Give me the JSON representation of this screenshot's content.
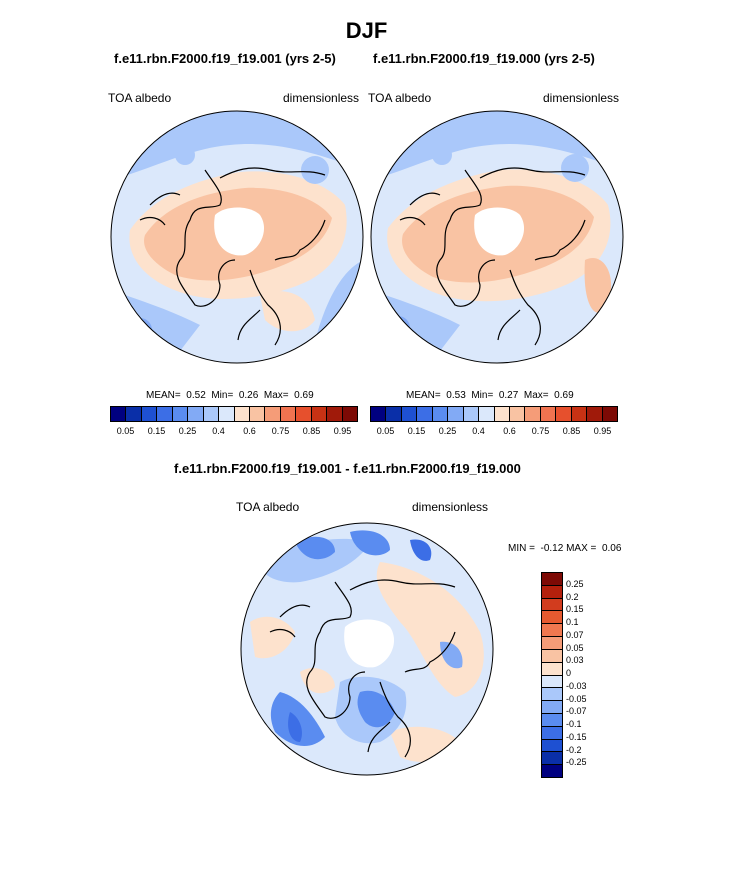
{
  "season_title": "DJF",
  "panels": [
    {
      "case_label": "f.e11.rbn.F2000.f19_f19.001 (yrs 2-5)",
      "variable": "TOA albedo",
      "units": "dimensionless",
      "stats": {
        "mean_label": "MEAN=",
        "mean": "0.52",
        "min_label": "Min=",
        "min": "0.26",
        "max_label": "Max=",
        "max": "0.69"
      }
    },
    {
      "case_label": "f.e11.rbn.F2000.f19_f19.000 (yrs 2-5)",
      "variable": "TOA albedo",
      "units": "dimensionless",
      "stats": {
        "mean_label": "MEAN=",
        "mean": "0.53",
        "min_label": "Min=",
        "min": "0.27",
        "max_label": "Max=",
        "max": "0.69"
      }
    }
  ],
  "abs_colorbar": {
    "colors": [
      "#000080",
      "#0a2fa8",
      "#1e50d2",
      "#3c6ee6",
      "#5a8cf0",
      "#82aaf5",
      "#aac8fa",
      "#dbe8fb",
      "#fde2cd",
      "#f9c3a3",
      "#f59c78",
      "#f07350",
      "#e6502d",
      "#c83214",
      "#a01a0a",
      "#7d0a05"
    ],
    "ticks": [
      "0.05",
      "0.15",
      "0.25",
      "0.4",
      "0.6",
      "0.75",
      "0.85",
      "0.95"
    ]
  },
  "diff_panel": {
    "title": "f.e11.rbn.F2000.f19_f19.001 - f.e11.rbn.F2000.f19_f19.000",
    "variable": "TOA albedo",
    "units": "dimensionless",
    "minmax": {
      "min_label": "MIN =",
      "min": "-0.12",
      "max_label": "MAX =",
      "max": "0.06"
    }
  },
  "diff_colorbar": {
    "colors": [
      "#7d0a05",
      "#b4200c",
      "#d23c1e",
      "#e65a30",
      "#f07850",
      "#f59c78",
      "#f9c3a3",
      "#fde2cd",
      "#dbe8fb",
      "#aac8fa",
      "#82aaf5",
      "#5a8cf0",
      "#3c6ee6",
      "#1e50d2",
      "#0a2fa8",
      "#000080"
    ],
    "ticks": [
      "0.25",
      "0.2",
      "0.15",
      "0.1",
      "0.07",
      "0.05",
      "0.03",
      "0",
      "-0.03",
      "-0.05",
      "-0.07",
      "-0.1",
      "-0.15",
      "-0.2",
      "-0.25"
    ]
  },
  "map_colors": {
    "cream": "#fde2cd",
    "peach": "#f9c3a3",
    "pale_blue": "#dbe8fb",
    "light_blue": "#aac8fa",
    "mid_blue": "#82aaf5",
    "blue": "#5a8cf0",
    "deep_blue": "#3c6ee6"
  }
}
